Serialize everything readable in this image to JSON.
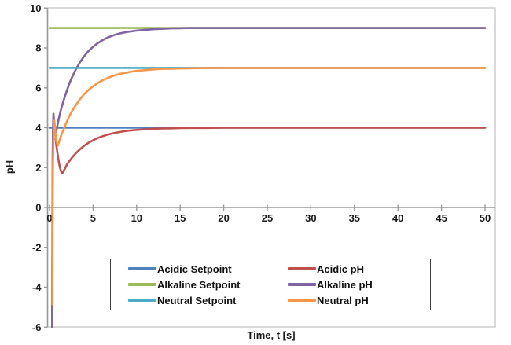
{
  "chart_data": {
    "type": "line",
    "title": "",
    "xlabel": "Time, t [s]",
    "ylabel": "pH",
    "xlim": [
      0,
      51.4
    ],
    "ylim": [
      -6,
      10
    ],
    "x_ticks": [
      0,
      5,
      10,
      15,
      20,
      25,
      30,
      35,
      40,
      45,
      50
    ],
    "y_ticks": [
      10,
      8,
      6,
      4,
      2,
      0,
      -2,
      -4,
      -6
    ],
    "grid": false,
    "legend_position": "inside-bottom-center",
    "series": [
      {
        "name": "Acidic Setpoint",
        "color": "#4F81BD",
        "points": [
          [
            0,
            4
          ],
          [
            50,
            4
          ]
        ]
      },
      {
        "name": "Acidic pH",
        "color": "#C0504D",
        "points": [
          [
            0.7,
            3.45
          ],
          [
            0.8,
            3.05
          ],
          [
            0.9,
            2.75
          ],
          [
            1,
            2.45
          ],
          [
            1.1,
            2.2
          ],
          [
            1.2,
            2.0
          ],
          [
            1.3,
            1.84
          ],
          [
            1.4,
            1.72
          ],
          [
            1.5,
            1.73
          ],
          [
            1.6,
            1.8
          ],
          [
            1.8,
            1.98
          ],
          [
            2,
            2.16
          ],
          [
            2.25,
            2.31
          ],
          [
            2.5,
            2.45
          ],
          [
            2.75,
            2.59
          ],
          [
            3,
            2.71
          ],
          [
            3.5,
            2.92
          ],
          [
            4,
            3.1
          ],
          [
            4.5,
            3.25
          ],
          [
            5,
            3.37
          ],
          [
            5.5,
            3.48
          ],
          [
            6,
            3.56
          ],
          [
            6.5,
            3.63
          ],
          [
            7,
            3.69
          ],
          [
            7.5,
            3.74
          ],
          [
            8,
            3.78
          ],
          [
            8.5,
            3.82
          ],
          [
            9,
            3.85
          ],
          [
            9.5,
            3.87
          ],
          [
            10,
            3.89
          ],
          [
            11,
            3.92
          ],
          [
            12,
            3.95
          ],
          [
            13,
            3.96
          ],
          [
            14,
            3.97
          ],
          [
            15,
            3.98
          ],
          [
            16,
            3.99
          ],
          [
            18,
            3.99
          ],
          [
            20,
            4
          ],
          [
            25,
            4
          ],
          [
            30,
            4
          ],
          [
            35,
            4
          ],
          [
            40,
            4
          ],
          [
            45,
            4
          ],
          [
            50,
            4
          ]
        ]
      },
      {
        "name": "Alkaline Setpoint",
        "color": "#9BBB59",
        "points": [
          [
            0,
            9
          ],
          [
            50,
            9
          ]
        ]
      },
      {
        "name": "Alkaline pH",
        "color": "#8064A2",
        "points": [
          [
            0.3,
            -6
          ],
          [
            0.31,
            -3.5
          ],
          [
            0.33,
            0
          ],
          [
            0.36,
            2.5
          ],
          [
            0.4,
            3.9
          ],
          [
            0.45,
            4.7
          ],
          [
            0.5,
            4.45
          ],
          [
            0.57,
            4.0
          ],
          [
            0.65,
            3.8
          ],
          [
            0.7,
            3.75
          ],
          [
            0.8,
            3.9
          ],
          [
            0.9,
            4.1
          ],
          [
            1,
            4.34
          ],
          [
            1.25,
            4.8
          ],
          [
            1.5,
            5.19
          ],
          [
            1.75,
            5.55
          ],
          [
            2,
            5.88
          ],
          [
            2.25,
            6.18
          ],
          [
            2.5,
            6.45
          ],
          [
            3,
            6.91
          ],
          [
            3.5,
            7.29
          ],
          [
            4,
            7.6
          ],
          [
            4.5,
            7.86
          ],
          [
            5,
            8.06
          ],
          [
            5.5,
            8.23
          ],
          [
            6,
            8.37
          ],
          [
            6.5,
            8.49
          ],
          [
            7,
            8.58
          ],
          [
            7.5,
            8.66
          ],
          [
            8,
            8.72
          ],
          [
            8.5,
            8.77
          ],
          [
            9,
            8.81
          ],
          [
            9.5,
            8.84
          ],
          [
            10,
            8.87
          ],
          [
            11,
            8.91
          ],
          [
            12,
            8.94
          ],
          [
            13,
            8.96
          ],
          [
            14,
            8.98
          ],
          [
            15,
            8.99
          ],
          [
            16,
            9
          ],
          [
            20,
            9
          ],
          [
            25,
            9
          ],
          [
            30,
            9
          ],
          [
            35,
            9
          ],
          [
            40,
            9
          ],
          [
            45,
            9
          ],
          [
            50,
            9
          ]
        ]
      },
      {
        "name": "Neutral Setpoint",
        "color": "#4BACC6",
        "points": [
          [
            0,
            7
          ],
          [
            50,
            7
          ]
        ]
      },
      {
        "name": "Neutral pH",
        "color": "#F79646",
        "points": [
          [
            0.33,
            -4.85
          ],
          [
            0.34,
            -2.5
          ],
          [
            0.36,
            0.5
          ],
          [
            0.4,
            2.2
          ],
          [
            0.45,
            3.4
          ],
          [
            0.5,
            4.1
          ],
          [
            0.55,
            4.35
          ],
          [
            0.62,
            4.05
          ],
          [
            0.7,
            3.6
          ],
          [
            0.8,
            3.3
          ],
          [
            0.9,
            3.15
          ],
          [
            0.95,
            3.1
          ],
          [
            1.1,
            3.3
          ],
          [
            1.3,
            3.57
          ],
          [
            1.5,
            3.79
          ],
          [
            1.75,
            4.06
          ],
          [
            2,
            4.32
          ],
          [
            2.25,
            4.55
          ],
          [
            2.5,
            4.77
          ],
          [
            3,
            5.12
          ],
          [
            3.5,
            5.43
          ],
          [
            4,
            5.69
          ],
          [
            4.5,
            5.9
          ],
          [
            5,
            6.08
          ],
          [
            5.5,
            6.23
          ],
          [
            6,
            6.36
          ],
          [
            6.5,
            6.46
          ],
          [
            7,
            6.55
          ],
          [
            7.5,
            6.63
          ],
          [
            8,
            6.69
          ],
          [
            8.5,
            6.74
          ],
          [
            9,
            6.78
          ],
          [
            9.5,
            6.82
          ],
          [
            10,
            6.85
          ],
          [
            11,
            6.89
          ],
          [
            12,
            6.93
          ],
          [
            13,
            6.95
          ],
          [
            14,
            6.96
          ],
          [
            15,
            6.97
          ],
          [
            16,
            6.98
          ],
          [
            18,
            6.99
          ],
          [
            20,
            7
          ],
          [
            25,
            7
          ],
          [
            30,
            7
          ],
          [
            35,
            7
          ],
          [
            40,
            7
          ],
          [
            45,
            7
          ],
          [
            50,
            7
          ]
        ]
      }
    ],
    "style": {
      "axis_color": "#9a9a9a",
      "border_color": "#c6c6c6",
      "text_color": "#1a1a1a",
      "line_width": 2.6
    }
  }
}
